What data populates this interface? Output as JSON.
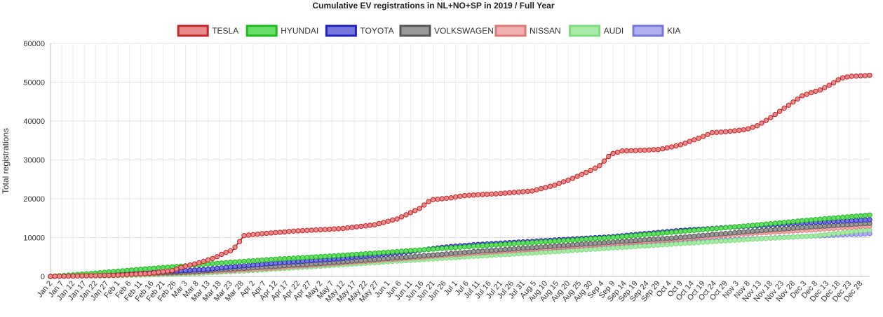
{
  "chart_data": {
    "type": "line",
    "title": "Cumulative EV registrations in NL+NO+SP in 2019 / Full Year",
    "xlabel": "",
    "ylabel": "Total registrations",
    "ylim": [
      0,
      60000
    ],
    "yticks": [
      "0",
      "10000",
      "20000",
      "30000",
      "40000",
      "50000",
      "60000"
    ],
    "yticks_values": [
      0,
      10000,
      20000,
      30000,
      40000,
      50000,
      60000
    ],
    "legend_position": "top-center",
    "grid": true,
    "x_tick_labels": [
      "Jan 2",
      "Jan 7",
      "Jan 12",
      "Jan 17",
      "Jan 22",
      "Jan 27",
      "Feb 1",
      "Feb 6",
      "Feb 11",
      "Feb 16",
      "Feb 21",
      "Feb 26",
      "Mar 3",
      "Mar 8",
      "Mar 13",
      "Mar 18",
      "Mar 23",
      "Mar 28",
      "Apr 2",
      "Apr 7",
      "Apr 12",
      "Apr 17",
      "Apr 22",
      "Apr 27",
      "May 2",
      "May 7",
      "May 12",
      "May 17",
      "May 22",
      "May 27",
      "Jun 1",
      "Jun 6",
      "Jun 11",
      "Jun 16",
      "Jun 21",
      "Jun 26",
      "Jul 1",
      "Jul 6",
      "Jul 11",
      "Jul 16",
      "Jul 21",
      "Jul 26",
      "Jul 31",
      "Aug 5",
      "Aug 10",
      "Aug 15",
      "Aug 20",
      "Aug 25",
      "Aug 30",
      "Sep 4",
      "Sep 9",
      "Sep 14",
      "Sep 19",
      "Sep 24",
      "Sep 29",
      "Oct 4",
      "Oct 9",
      "Oct 14",
      "Oct 19",
      "Oct 24",
      "Oct 29",
      "Nov 3",
      "Nov 8",
      "Nov 13",
      "Nov 18",
      "Nov 23",
      "Nov 28",
      "Dec 3",
      "Dec 8",
      "Dec 13",
      "Dec 18",
      "Dec 23",
      "Dec 28"
    ],
    "x_range_days": [
      1,
      365
    ],
    "x_tick_step_days": 5,
    "series": [
      {
        "name": "TESLA",
        "fill": "#e88a8a",
        "stroke": "#c0282d",
        "days": [
          1,
          30,
          45,
          55,
          60,
          67,
          74,
          78,
          82,
          85,
          87,
          95,
          110,
          130,
          145,
          155,
          165,
          170,
          175,
          180,
          182,
          185,
          190,
          200,
          215,
          225,
          232,
          240,
          245,
          250,
          255,
          260,
          265,
          268,
          272,
          274,
          280,
          290,
          295,
          300,
          305,
          310,
          315,
          320,
          325,
          330,
          335,
          340,
          343,
          348,
          352,
          356,
          360,
          363,
          365
        ],
        "values": [
          0,
          300,
          800,
          1500,
          2500,
          3500,
          4800,
          6000,
          6800,
          9000,
          10500,
          11000,
          11700,
          12300,
          13300,
          14800,
          17500,
          19700,
          20000,
          20300,
          20600,
          20800,
          21000,
          21300,
          22000,
          23500,
          25000,
          27000,
          28500,
          31500,
          32300,
          32400,
          32500,
          32600,
          32700,
          33000,
          33700,
          35800,
          37000,
          37200,
          37500,
          37800,
          38800,
          40500,
          42500,
          44500,
          46500,
          47500,
          48000,
          49500,
          51000,
          51500,
          51600,
          51700,
          51800
        ]
      },
      {
        "name": "HYUNDAI",
        "fill": "#66dd66",
        "stroke": "#22b822",
        "days": [
          1,
          20,
          40,
          60,
          80,
          100,
          130,
          160,
          190,
          220,
          250,
          280,
          310,
          340,
          365
        ],
        "values": [
          0,
          800,
          1800,
          2700,
          3600,
          4400,
          5400,
          6600,
          7800,
          8900,
          10000,
          11500,
          13000,
          14600,
          15800
        ]
      },
      {
        "name": "TOYOTA",
        "fill": "#7777dd",
        "stroke": "#2222bb",
        "days": [
          1,
          20,
          40,
          60,
          70,
          80,
          100,
          130,
          160,
          175,
          190,
          220,
          250,
          280,
          310,
          340,
          365
        ],
        "values": [
          0,
          400,
          900,
          1500,
          1800,
          2400,
          3400,
          4600,
          6300,
          7500,
          8200,
          9200,
          10200,
          11800,
          12900,
          13900,
          14600
        ]
      },
      {
        "name": "VOLKSWAGEN",
        "fill": "#999999",
        "stroke": "#555555",
        "days": [
          1,
          30,
          60,
          90,
          120,
          160,
          190,
          220,
          250,
          280,
          310,
          340,
          365
        ],
        "values": [
          0,
          500,
          1100,
          2200,
          3300,
          5000,
          6400,
          7600,
          8800,
          10000,
          11500,
          12800,
          13700
        ]
      },
      {
        "name": "NISSAN",
        "fill": "#f0b0b0",
        "stroke": "#dd7777",
        "days": [
          1,
          30,
          60,
          90,
          120,
          160,
          190,
          220,
          250,
          280,
          310,
          340,
          365
        ],
        "values": [
          0,
          400,
          900,
          1800,
          3000,
          4700,
          6000,
          7200,
          8400,
          9600,
          11000,
          12000,
          13000
        ]
      },
      {
        "name": "AUDI",
        "fill": "#a8eba8",
        "stroke": "#7edc7e",
        "days": [
          1,
          30,
          60,
          90,
          120,
          160,
          190,
          220,
          250,
          280,
          310,
          340,
          365
        ],
        "values": [
          0,
          200,
          600,
          1500,
          2600,
          4100,
          5200,
          6200,
          7300,
          8400,
          9500,
          10400,
          12000
        ]
      },
      {
        "name": "KIA",
        "fill": "#b0b0ee",
        "stroke": "#7777dd",
        "days": [
          1,
          30,
          60,
          90,
          120,
          160,
          190,
          220,
          250,
          280,
          310,
          340,
          365
        ],
        "values": [
          0,
          300,
          800,
          1700,
          2800,
          4400,
          5600,
          6700,
          7800,
          8800,
          9600,
          10400,
          11000
        ]
      }
    ]
  }
}
